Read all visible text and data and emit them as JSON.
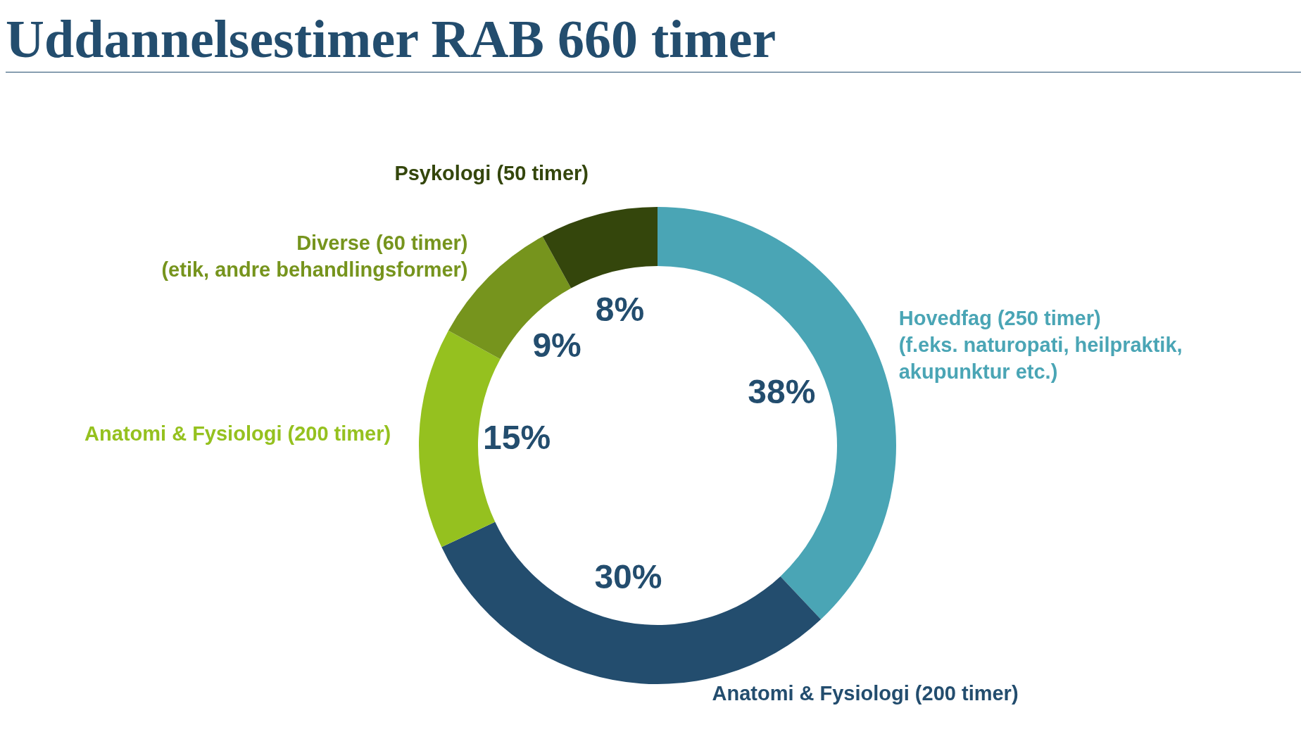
{
  "chart_data": {
    "type": "donut",
    "title": "Uddannelsestimer RAB 660 timer",
    "categories": [
      "Hovedfag (250 timer)\n(f.eks. naturopati, heilpraktik,\nakupunktur etc.)",
      "Anatomi & Fysiologi (200 timer)",
      "Anatomi & Fysiologi (200 timer)",
      "Diverse (60 timer)\n(etik, andre behandlingsformer)",
      "Psykologi (50 timer)"
    ],
    "values": [
      38,
      30,
      15,
      9,
      8
    ],
    "value_labels": [
      "38%",
      "30%",
      "15%",
      "9%",
      "8%"
    ],
    "colors": [
      "#4aa5b5",
      "#234d6e",
      "#95c11f",
      "#76941d",
      "#34460c"
    ]
  }
}
